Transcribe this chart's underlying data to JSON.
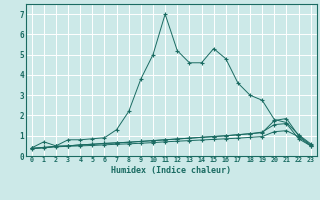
{
  "xlabel": "Humidex (Indice chaleur)",
  "xlim": [
    -0.5,
    23.5
  ],
  "ylim": [
    0,
    7.5
  ],
  "xticks": [
    0,
    1,
    2,
    3,
    4,
    5,
    6,
    7,
    8,
    9,
    10,
    11,
    12,
    13,
    14,
    15,
    16,
    17,
    18,
    19,
    20,
    21,
    22,
    23
  ],
  "yticks": [
    0,
    1,
    2,
    3,
    4,
    5,
    6,
    7
  ],
  "background_color": "#cce9e8",
  "line_color": "#1a6b62",
  "grid_color": "#ffffff",
  "curve1_x": [
    0,
    1,
    2,
    3,
    4,
    5,
    6,
    7,
    8,
    9,
    10,
    11,
    12,
    13,
    14,
    15,
    16,
    17,
    18,
    19,
    20,
    21,
    22,
    23
  ],
  "curve1_y": [
    0.4,
    0.7,
    0.5,
    0.8,
    0.8,
    0.85,
    0.9,
    1.3,
    2.2,
    3.8,
    5.0,
    7.0,
    5.2,
    4.6,
    4.6,
    5.3,
    4.8,
    3.6,
    3.0,
    2.75,
    1.8,
    1.65,
    1.05,
    0.6
  ],
  "curve2_x": [
    0,
    1,
    2,
    3,
    4,
    5,
    6,
    7,
    8,
    9,
    10,
    11,
    12,
    13,
    14,
    15,
    16,
    17,
    18,
    19,
    20,
    21,
    22,
    23
  ],
  "curve2_y": [
    0.38,
    0.42,
    0.48,
    0.5,
    0.55,
    0.58,
    0.62,
    0.65,
    0.68,
    0.72,
    0.76,
    0.8,
    0.84,
    0.88,
    0.92,
    0.96,
    1.0,
    1.05,
    1.1,
    1.15,
    1.75,
    1.85,
    1.0,
    0.55
  ],
  "curve3_x": [
    0,
    1,
    2,
    3,
    4,
    5,
    6,
    7,
    8,
    9,
    10,
    11,
    12,
    13,
    14,
    15,
    16,
    17,
    18,
    19,
    20,
    21,
    22,
    23
  ],
  "curve3_y": [
    0.38,
    0.42,
    0.48,
    0.5,
    0.55,
    0.58,
    0.62,
    0.65,
    0.68,
    0.72,
    0.76,
    0.8,
    0.84,
    0.88,
    0.92,
    0.96,
    1.0,
    1.05,
    1.1,
    1.18,
    1.55,
    1.6,
    0.85,
    0.5
  ],
  "curve4_x": [
    0,
    1,
    2,
    3,
    4,
    5,
    6,
    7,
    8,
    9,
    10,
    11,
    12,
    13,
    14,
    15,
    16,
    17,
    18,
    19,
    20,
    21,
    22,
    23
  ],
  "curve4_y": [
    0.36,
    0.4,
    0.45,
    0.48,
    0.5,
    0.52,
    0.55,
    0.58,
    0.6,
    0.63,
    0.66,
    0.7,
    0.73,
    0.76,
    0.79,
    0.82,
    0.85,
    0.88,
    0.92,
    0.96,
    1.2,
    1.25,
    0.95,
    0.5
  ]
}
